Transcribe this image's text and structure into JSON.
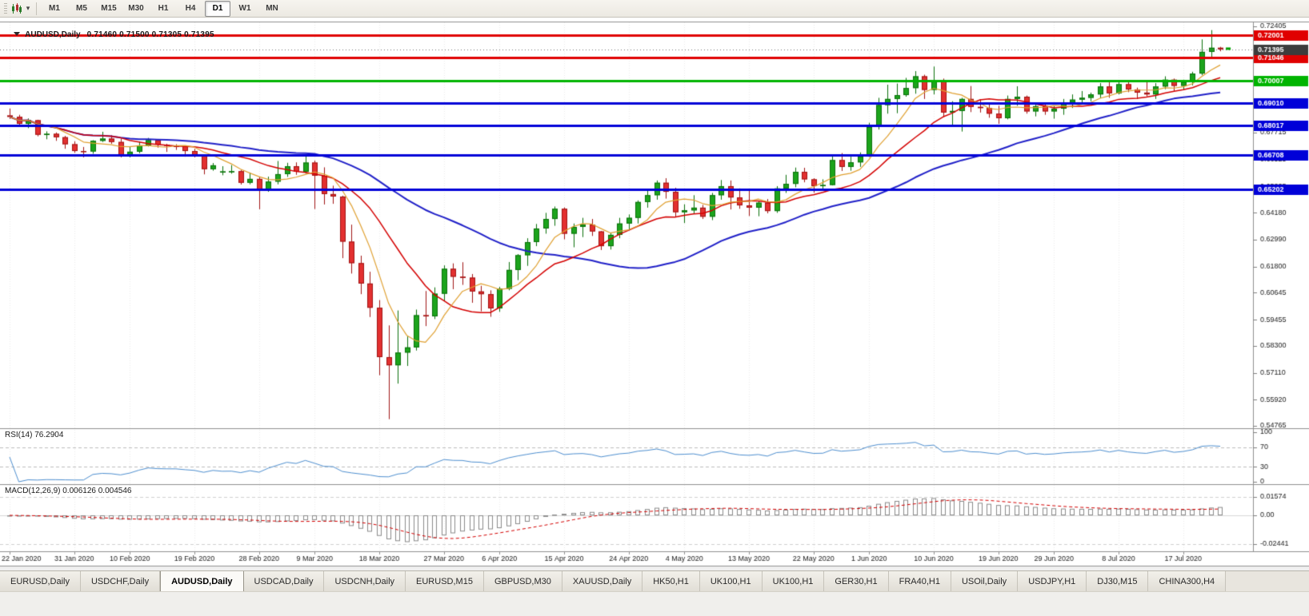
{
  "toolbar": {
    "timeframes": [
      {
        "label": "M1",
        "active": false
      },
      {
        "label": "M5",
        "active": false
      },
      {
        "label": "M15",
        "active": false
      },
      {
        "label": "M30",
        "active": false
      },
      {
        "label": "H1",
        "active": false
      },
      {
        "label": "H4",
        "active": false
      },
      {
        "label": "D1",
        "active": true
      },
      {
        "label": "W1",
        "active": false
      },
      {
        "label": "MN",
        "active": false
      }
    ]
  },
  "chart": {
    "header": {
      "symbol": "AUDUSD,Daily",
      "ohlc": "0.71460 0.71500 0.71305 0.71395"
    }
  },
  "indicators": {
    "rsi": {
      "label": "RSI(14) 76.2904"
    },
    "macd": {
      "label": "MACD(12,26,9) 0.006126 0.004546"
    }
  },
  "chart_data": {
    "type": "candlestick",
    "symbol": "AUDUSD",
    "timeframe": "Daily",
    "colors": {
      "up": "#1CA41C",
      "up_border": "#0B700B",
      "down": "#E33030",
      "down_border": "#A01414",
      "rsi": "#4E8FD0"
    },
    "ohlc": [
      [
        0.6847,
        0.6878,
        0.6832,
        0.6841
      ],
      [
        0.6841,
        0.685,
        0.6805,
        0.681
      ],
      [
        0.681,
        0.6834,
        0.6791,
        0.6827
      ],
      [
        0.6826,
        0.6828,
        0.6755,
        0.6762
      ],
      [
        0.6762,
        0.6777,
        0.6742,
        0.6766
      ],
      [
        0.6766,
        0.6772,
        0.6735,
        0.6751
      ],
      [
        0.6751,
        0.6757,
        0.67,
        0.672
      ],
      [
        0.672,
        0.6733,
        0.6682,
        0.669
      ],
      [
        0.669,
        0.6708,
        0.6662,
        0.6688
      ],
      [
        0.6688,
        0.6738,
        0.6678,
        0.6735
      ],
      [
        0.6735,
        0.6775,
        0.673,
        0.6745
      ],
      [
        0.6745,
        0.676,
        0.6722,
        0.673
      ],
      [
        0.673,
        0.6745,
        0.6662,
        0.667
      ],
      [
        0.667,
        0.671,
        0.6662,
        0.6687
      ],
      [
        0.6687,
        0.6732,
        0.668,
        0.6715
      ],
      [
        0.6715,
        0.6748,
        0.671,
        0.6738
      ],
      [
        0.6738,
        0.674,
        0.6705,
        0.6718
      ],
      [
        0.6718,
        0.6722,
        0.6686,
        0.6713
      ],
      [
        0.6713,
        0.672,
        0.6695,
        0.6712
      ],
      [
        0.6712,
        0.6713,
        0.6665,
        0.669
      ],
      [
        0.669,
        0.67,
        0.6662,
        0.6672
      ],
      [
        0.6672,
        0.6675,
        0.6587,
        0.661
      ],
      [
        0.661,
        0.6637,
        0.6603,
        0.6627
      ],
      [
        0.66,
        0.6623,
        0.6583,
        0.66
      ],
      [
        0.66,
        0.6628,
        0.659,
        0.6601
      ],
      [
        0.6601,
        0.6607,
        0.6542,
        0.655
      ],
      [
        0.655,
        0.6595,
        0.6543,
        0.6567
      ],
      [
        0.6567,
        0.6576,
        0.6433,
        0.6515
      ],
      [
        0.6515,
        0.6577,
        0.651,
        0.6555
      ],
      [
        0.6555,
        0.6646,
        0.6543,
        0.6588
      ],
      [
        0.6588,
        0.6638,
        0.6576,
        0.6623
      ],
      [
        0.6623,
        0.664,
        0.6585,
        0.6599
      ],
      [
        0.6599,
        0.6668,
        0.659,
        0.6639
      ],
      [
        0.6639,
        0.6648,
        0.6434,
        0.6581
      ],
      [
        0.6581,
        0.6618,
        0.6454,
        0.65
      ],
      [
        0.65,
        0.6537,
        0.6457,
        0.6489
      ],
      [
        0.6489,
        0.6493,
        0.6217,
        0.629
      ],
      [
        0.629,
        0.6365,
        0.6149,
        0.6195
      ],
      [
        0.6195,
        0.6228,
        0.6058,
        0.6105
      ],
      [
        0.6105,
        0.6157,
        0.5957,
        0.5998
      ],
      [
        0.5998,
        0.6032,
        0.57,
        0.578
      ],
      [
        0.578,
        0.592,
        0.5506,
        0.5744
      ],
      [
        0.5744,
        0.5986,
        0.5663,
        0.58
      ],
      [
        0.58,
        0.5871,
        0.5741,
        0.5823
      ],
      [
        0.5823,
        0.599,
        0.5809,
        0.5965
      ],
      [
        0.5965,
        0.6072,
        0.5917,
        0.596
      ],
      [
        0.596,
        0.6088,
        0.5948,
        0.606
      ],
      [
        0.606,
        0.6185,
        0.6027,
        0.617
      ],
      [
        0.617,
        0.6194,
        0.608,
        0.6135
      ],
      [
        0.6135,
        0.6199,
        0.6099,
        0.6131
      ],
      [
        0.6131,
        0.6147,
        0.602,
        0.607
      ],
      [
        0.607,
        0.6095,
        0.5982,
        0.6058
      ],
      [
        0.6058,
        0.6075,
        0.5958,
        0.5995
      ],
      [
        0.5995,
        0.609,
        0.598,
        0.6082
      ],
      [
        0.6082,
        0.62,
        0.6075,
        0.6165
      ],
      [
        0.6165,
        0.6235,
        0.612,
        0.623
      ],
      [
        0.623,
        0.6305,
        0.6183,
        0.6288
      ],
      [
        0.6288,
        0.6368,
        0.627,
        0.6348
      ],
      [
        0.6348,
        0.6417,
        0.6325,
        0.639
      ],
      [
        0.639,
        0.6445,
        0.636,
        0.6435
      ],
      [
        0.6435,
        0.6441,
        0.63,
        0.6325
      ],
      [
        0.6325,
        0.637,
        0.6265,
        0.6355
      ],
      [
        0.6355,
        0.6395,
        0.631,
        0.6365
      ],
      [
        0.6365,
        0.639,
        0.6315,
        0.6335
      ],
      [
        0.6335,
        0.6337,
        0.6253,
        0.627
      ],
      [
        0.627,
        0.633,
        0.6255,
        0.632
      ],
      [
        0.632,
        0.6395,
        0.6305,
        0.637
      ],
      [
        0.637,
        0.641,
        0.634,
        0.6395
      ],
      [
        0.6395,
        0.6472,
        0.637,
        0.6465
      ],
      [
        0.6465,
        0.652,
        0.644,
        0.6495
      ],
      [
        0.6495,
        0.656,
        0.6475,
        0.655
      ],
      [
        0.655,
        0.657,
        0.648,
        0.651
      ],
      [
        0.651,
        0.6528,
        0.64,
        0.642
      ],
      [
        0.642,
        0.6455,
        0.6372,
        0.6428
      ],
      [
        0.6428,
        0.6495,
        0.6415,
        0.644
      ],
      [
        0.644,
        0.6452,
        0.639,
        0.64
      ],
      [
        0.64,
        0.6505,
        0.6385,
        0.6495
      ],
      [
        0.6495,
        0.6562,
        0.6475,
        0.6535
      ],
      [
        0.6535,
        0.656,
        0.6432,
        0.6485
      ],
      [
        0.6485,
        0.6525,
        0.6435,
        0.645
      ],
      [
        0.645,
        0.6518,
        0.6403,
        0.644
      ],
      [
        0.644,
        0.647,
        0.6402,
        0.6462
      ],
      [
        0.6462,
        0.6478,
        0.6415,
        0.6425
      ],
      [
        0.6425,
        0.6535,
        0.6417,
        0.6525
      ],
      [
        0.6525,
        0.6585,
        0.6505,
        0.6545
      ],
      [
        0.6545,
        0.6617,
        0.653,
        0.6598
      ],
      [
        0.6598,
        0.6616,
        0.6552,
        0.6565
      ],
      [
        0.6565,
        0.657,
        0.6506,
        0.6535
      ],
      [
        0.6535,
        0.6565,
        0.652,
        0.654
      ],
      [
        0.654,
        0.6675,
        0.6538,
        0.665
      ],
      [
        0.665,
        0.6681,
        0.6602,
        0.662
      ],
      [
        0.662,
        0.6665,
        0.6603,
        0.664
      ],
      [
        0.664,
        0.6684,
        0.662,
        0.6667
      ],
      [
        0.6667,
        0.6815,
        0.6664,
        0.6797
      ],
      [
        0.6797,
        0.6925,
        0.6785,
        0.6893
      ],
      [
        0.6893,
        0.6983,
        0.6855,
        0.692
      ],
      [
        0.692,
        0.6988,
        0.6857,
        0.6937
      ],
      [
        0.6937,
        0.7013,
        0.693,
        0.6968
      ],
      [
        0.6968,
        0.7043,
        0.6943,
        0.702
      ],
      [
        0.702,
        0.7027,
        0.692,
        0.696
      ],
      [
        0.696,
        0.7063,
        0.694,
        0.6998
      ],
      [
        0.6998,
        0.701,
        0.684,
        0.686
      ],
      [
        0.686,
        0.691,
        0.68,
        0.6867
      ],
      [
        0.6867,
        0.6925,
        0.6776,
        0.692
      ],
      [
        0.692,
        0.6977,
        0.6862,
        0.6885
      ],
      [
        0.6885,
        0.6918,
        0.686,
        0.688
      ],
      [
        0.688,
        0.6895,
        0.6837,
        0.6855
      ],
      [
        0.6855,
        0.689,
        0.681,
        0.6835
      ],
      [
        0.6835,
        0.6935,
        0.683,
        0.692
      ],
      [
        0.692,
        0.6976,
        0.689,
        0.693
      ],
      [
        0.693,
        0.6935,
        0.6855,
        0.6865
      ],
      [
        0.6865,
        0.6895,
        0.6843,
        0.6888
      ],
      [
        0.6888,
        0.69,
        0.685,
        0.6865
      ],
      [
        0.6865,
        0.689,
        0.6833,
        0.6877
      ],
      [
        0.6877,
        0.692,
        0.685,
        0.6903
      ],
      [
        0.6903,
        0.694,
        0.688,
        0.6917
      ],
      [
        0.6917,
        0.6955,
        0.69,
        0.6925
      ],
      [
        0.6925,
        0.6948,
        0.691,
        0.694
      ],
      [
        0.694,
        0.699,
        0.6923,
        0.6975
      ],
      [
        0.6975,
        0.6998,
        0.6925,
        0.6945
      ],
      [
        0.6945,
        0.7,
        0.694,
        0.6985
      ],
      [
        0.6985,
        0.7,
        0.695,
        0.6962
      ],
      [
        0.6962,
        0.697,
        0.692,
        0.6948
      ],
      [
        0.6948,
        0.7,
        0.6932,
        0.694
      ],
      [
        0.694,
        0.699,
        0.692,
        0.6975
      ],
      [
        0.6975,
        0.702,
        0.6963,
        0.7005
      ],
      [
        0.7005,
        0.701,
        0.6955,
        0.6978
      ],
      [
        0.6978,
        0.7005,
        0.696,
        0.6995
      ],
      [
        0.6995,
        0.704,
        0.698,
        0.7032
      ],
      [
        0.7032,
        0.7183,
        0.7025,
        0.7128
      ],
      [
        0.7128,
        0.7224,
        0.7103,
        0.7146
      ],
      [
        0.7146,
        0.715,
        0.71305,
        0.71395
      ]
    ],
    "x_labels": [
      {
        "i": 0,
        "label": "22 Jan 2020"
      },
      {
        "i": 7,
        "label": "31 Jan 2020"
      },
      {
        "i": 13,
        "label": "10 Feb 2020"
      },
      {
        "i": 20,
        "label": "19 Feb 2020"
      },
      {
        "i": 27,
        "label": "28 Feb 2020"
      },
      {
        "i": 33,
        "label": "9 Mar 2020"
      },
      {
        "i": 40,
        "label": "18 Mar 2020"
      },
      {
        "i": 47,
        "label": "27 Mar 2020"
      },
      {
        "i": 53,
        "label": "6 Apr 2020"
      },
      {
        "i": 60,
        "label": "15 Apr 2020"
      },
      {
        "i": 67,
        "label": "24 Apr 2020"
      },
      {
        "i": 73,
        "label": "4 May 2020"
      },
      {
        "i": 80,
        "label": "13 May 2020"
      },
      {
        "i": 87,
        "label": "22 May 2020"
      },
      {
        "i": 93,
        "label": "1 Jun 2020"
      },
      {
        "i": 100,
        "label": "10 Jun 2020"
      },
      {
        "i": 107,
        "label": "19 Jun 2020"
      },
      {
        "i": 113,
        "label": "29 Jun 2020"
      },
      {
        "i": 120,
        "label": "8 Jul 2020"
      },
      {
        "i": 127,
        "label": "17 Jul 2020"
      }
    ],
    "y_ticks": [
      "0.72405",
      "0.71215",
      "0.70060",
      "0.68870",
      "0.67715",
      "0.66525",
      "0.65335",
      "0.64180",
      "0.62990",
      "0.61800",
      "0.60645",
      "0.59455",
      "0.58300",
      "0.57110",
      "0.55920",
      "0.54765"
    ],
    "hlines": [
      {
        "price": 0.72001,
        "label": "0.72001",
        "color": "#E00000"
      },
      {
        "price": 0.71046,
        "label": "0.71046",
        "color": "#E00000"
      },
      {
        "price": 0.70007,
        "label": "0.70007",
        "color": "#00B400"
      },
      {
        "price": 0.6901,
        "label": "0.69010",
        "color": "#0000D8"
      },
      {
        "price": 0.68017,
        "label": "0.68017",
        "color": "#0000D8"
      },
      {
        "price": 0.66708,
        "label": "0.66708",
        "color": "#0000D8"
      },
      {
        "price": 0.65202,
        "label": "0.65202",
        "color": "#0000D8"
      }
    ],
    "current_price": {
      "value": 0.71395,
      "label": "0.71395",
      "color": "#3C3C3C"
    },
    "ma_overlays": [
      {
        "name": "ma-slow",
        "period": 34,
        "color": "#2020C8",
        "width": 2
      },
      {
        "name": "ma-mid",
        "period": 13,
        "color": "#D40000",
        "width": 1.5
      },
      {
        "name": "ma-fast",
        "period": 6,
        "color": "#E0A030",
        "width": 1.2
      }
    ],
    "rsi": {
      "period": 14,
      "value": "76.2904",
      "levels": [
        70,
        30
      ],
      "ticks": [
        {
          "v": 100,
          "label": "100"
        },
        {
          "v": 70,
          "label": "70"
        },
        {
          "v": 30,
          "label": "30"
        },
        {
          "v": 0,
          "label": "0"
        }
      ]
    },
    "macd": {
      "fast": 12,
      "slow": 26,
      "signal": 9,
      "values": "0.006126 0.004546",
      "ticks": [
        {
          "v": 0.01574,
          "label": "0.01574"
        },
        {
          "v": 0,
          "label": "0.00"
        },
        {
          "v": -0.02441,
          "label": "-0.02441"
        }
      ]
    }
  },
  "tabs": [
    {
      "label": "EURUSD,Daily",
      "active": false
    },
    {
      "label": "USDCHF,Daily",
      "active": false
    },
    {
      "label": "AUDUSD,Daily",
      "active": true
    },
    {
      "label": "USDCAD,Daily",
      "active": false
    },
    {
      "label": "USDCNH,Daily",
      "active": false
    },
    {
      "label": "EURUSD,M15",
      "active": false
    },
    {
      "label": "GBPUSD,M30",
      "active": false
    },
    {
      "label": "XAUUSD,Daily",
      "active": false
    },
    {
      "label": "HK50,H1",
      "active": false
    },
    {
      "label": "UK100,H1",
      "active": false
    },
    {
      "label": "UK100,H1",
      "active": false
    },
    {
      "label": "GER30,H1",
      "active": false
    },
    {
      "label": "FRA40,H1",
      "active": false
    },
    {
      "label": "USOil,Daily",
      "active": false
    },
    {
      "label": "USDJPY,H1",
      "active": false
    },
    {
      "label": "DJ30,M15",
      "active": false
    },
    {
      "label": "CHINA300,H4",
      "active": false
    }
  ]
}
